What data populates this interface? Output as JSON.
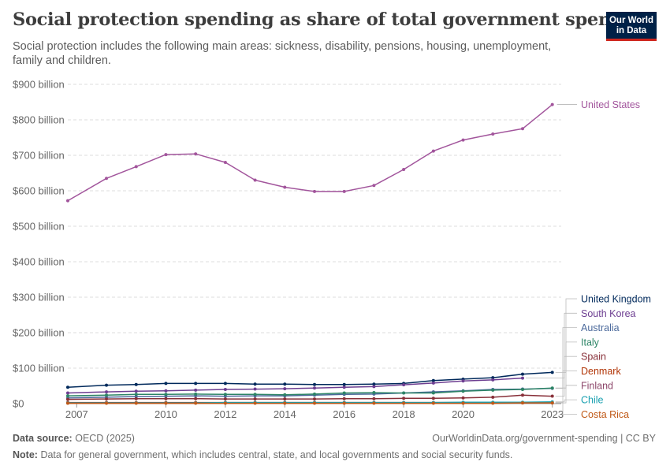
{
  "header": {
    "title": "Social protection spending as share of total government spending",
    "subtitle": "Social protection includes the following main areas: sickness, disability, pensions, housing, unemployment, family and children."
  },
  "logo": {
    "line1": "Our World",
    "line2": "in Data",
    "bg_color": "#002147",
    "accent_color": "#ce261e"
  },
  "footer": {
    "source_label": "Data source:",
    "source_text": "OECD (2025)",
    "url_text": "OurWorldinData.org/government-spending | CC BY",
    "note_label": "Note:",
    "note_text": "Data for general government, which includes central, state, and local governments and social security funds."
  },
  "chart_data": {
    "type": "line",
    "ylim": [
      0,
      900
    ],
    "xlim": [
      2006.7,
      2023.3
    ],
    "y_ticks": [
      {
        "value": 0,
        "label": "$0"
      },
      {
        "value": 100,
        "label": "$100 billion"
      },
      {
        "value": 200,
        "label": "$200 billion"
      },
      {
        "value": 300,
        "label": "$300 billion"
      },
      {
        "value": 400,
        "label": "$400 billion"
      },
      {
        "value": 500,
        "label": "$500 billion"
      },
      {
        "value": 600,
        "label": "$600 billion"
      },
      {
        "value": 700,
        "label": "$700 billion"
      },
      {
        "value": 800,
        "label": "$800 billion"
      },
      {
        "value": 900,
        "label": "$900 billion"
      }
    ],
    "x_ticks": [
      {
        "value": 2007,
        "label": "2007"
      },
      {
        "value": 2010,
        "label": "2010"
      },
      {
        "value": 2012,
        "label": "2012"
      },
      {
        "value": 2014,
        "label": "2014"
      },
      {
        "value": 2016,
        "label": "2016"
      },
      {
        "value": 2018,
        "label": "2018"
      },
      {
        "value": 2020,
        "label": "2020"
      },
      {
        "value": 2023,
        "label": "2023"
      }
    ],
    "grid": "horizontal-dashed",
    "legend": "right-end-labels",
    "series": [
      {
        "name": "United States",
        "color": "#a2559c",
        "x": [
          2006.7,
          2008,
          2009,
          2010,
          2011,
          2012,
          2013,
          2014,
          2015,
          2016,
          2017,
          2018,
          2019,
          2020,
          2021,
          2022,
          2023
        ],
        "y": [
          572,
          635,
          668,
          702,
          704,
          680,
          630,
          610,
          598,
          598,
          615,
          660,
          712,
          743,
          760,
          775,
          843
        ]
      },
      {
        "name": "United Kingdom",
        "color": "#00295b",
        "x": [
          2006.7,
          2008,
          2009,
          2010,
          2011,
          2012,
          2013,
          2014,
          2015,
          2016,
          2017,
          2018,
          2019,
          2020,
          2021,
          2022,
          2023
        ],
        "y": [
          46,
          52,
          54,
          57,
          57,
          57,
          55,
          55,
          54,
          54,
          55,
          57,
          65,
          69,
          73,
          83,
          88
        ]
      },
      {
        "name": "South Korea",
        "color": "#6d3e91",
        "x": [
          2006.7,
          2008,
          2009,
          2010,
          2011,
          2012,
          2013,
          2014,
          2015,
          2016,
          2017,
          2018,
          2019,
          2020,
          2021,
          2022
        ],
        "y": [
          30,
          33,
          35,
          36,
          38,
          40,
          41,
          42,
          44,
          46,
          48,
          53,
          58,
          64,
          67,
          72
        ]
      },
      {
        "name": "Australia",
        "color": "#4c6a9c",
        "x": [
          2006.7,
          2008,
          2009,
          2010,
          2011,
          2012,
          2013,
          2014,
          2015,
          2016,
          2017,
          2018,
          2019,
          2020,
          2021,
          2022,
          2023
        ],
        "y": [
          16,
          18,
          20,
          21,
          22,
          21,
          22,
          22,
          24,
          26,
          27,
          30,
          33,
          36,
          40,
          41,
          43
        ]
      },
      {
        "name": "Italy",
        "color": "#2c8465",
        "x": [
          2006.7,
          2008,
          2009,
          2010,
          2011,
          2012,
          2013,
          2014,
          2015,
          2016,
          2017,
          2018,
          2019,
          2020,
          2021,
          2022,
          2023
        ],
        "y": [
          22,
          24,
          26,
          26,
          27,
          26,
          26,
          25,
          27,
          30,
          31,
          30,
          30,
          35,
          38,
          40,
          44
        ]
      },
      {
        "name": "Spain",
        "color": "#883039",
        "x": [
          2006.7,
          2008,
          2009,
          2010,
          2011,
          2012,
          2013,
          2014,
          2015,
          2016,
          2017,
          2018,
          2019,
          2020,
          2021,
          2022,
          2023
        ],
        "y": [
          12,
          13,
          14,
          14,
          14,
          13,
          13,
          13,
          13,
          14,
          14,
          15,
          15,
          16,
          18,
          24,
          21
        ]
      },
      {
        "name": "Denmark",
        "color": "#b13507",
        "x": [
          2006.7,
          2008,
          2009,
          2010,
          2011,
          2012,
          2013,
          2014,
          2015,
          2016,
          2017,
          2018,
          2019,
          2020,
          2021,
          2022,
          2023
        ],
        "y": [
          3,
          3,
          3,
          3,
          3,
          3,
          3,
          3,
          3,
          3,
          3,
          3,
          3,
          3,
          3,
          3,
          3
        ]
      },
      {
        "name": "Finland",
        "color": "#8c4569",
        "x": [
          2006.7,
          2008,
          2009,
          2010,
          2011,
          2012,
          2013,
          2014,
          2015,
          2016,
          2017,
          2018,
          2019,
          2020,
          2021,
          2022,
          2023
        ],
        "y": [
          2,
          2,
          2,
          2,
          2,
          2,
          2,
          2,
          2,
          2,
          2,
          2,
          2,
          2,
          2,
          2,
          2
        ]
      },
      {
        "name": "Chile",
        "color": "#18a0b0",
        "x": [
          2006.7,
          2008,
          2009,
          2010,
          2011,
          2012,
          2013,
          2014,
          2015,
          2016,
          2017,
          2018,
          2019,
          2020,
          2021,
          2022,
          2023
        ],
        "y": [
          2,
          2,
          2,
          2,
          2,
          3,
          3,
          3,
          3,
          3,
          3,
          3,
          3,
          4,
          4,
          4,
          5
        ]
      },
      {
        "name": "Costa Rica",
        "color": "#c05917",
        "x": [
          2006.7,
          2008,
          2009,
          2010,
          2011,
          2012,
          2013,
          2014,
          2015,
          2016,
          2017,
          2018,
          2019,
          2020,
          2021,
          2022,
          2023
        ],
        "y": [
          1,
          1,
          1,
          1,
          1,
          1,
          1,
          1,
          1,
          1,
          1,
          1,
          1,
          1,
          1,
          2,
          2
        ]
      }
    ]
  }
}
